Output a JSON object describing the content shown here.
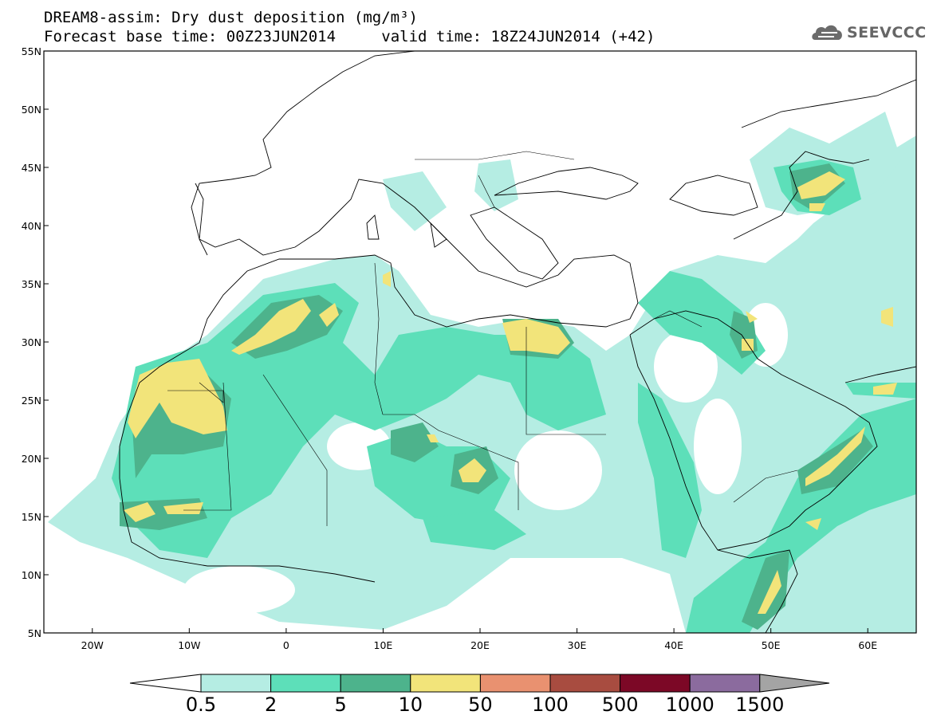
{
  "header": {
    "title_line1": "DREAM8-assim: Dry dust deposition (mg/m³)",
    "title_line2_left": "Forecast base time: 00Z23JUN2014",
    "title_line2_right": "valid time: 18Z24JUN2014 (+42)",
    "logo_text": "SEEVCCC",
    "logo_icon": "cloud-icon"
  },
  "map": {
    "lon_range": [
      -25,
      65
    ],
    "lat_range": [
      5,
      55
    ],
    "y_ticks": [
      "55N",
      "50N",
      "45N",
      "40N",
      "35N",
      "30N",
      "25N",
      "20N",
      "15N",
      "10N",
      "5N"
    ],
    "x_ticks": [
      "20W",
      "10W",
      "0",
      "10E",
      "20E",
      "30E",
      "40E",
      "50E",
      "60E"
    ]
  },
  "legend": {
    "labels": [
      "0.5",
      "2",
      "5",
      "10",
      "50",
      "100",
      "500",
      "1000",
      "1500"
    ],
    "colors": [
      "#ffffff",
      "#b5ede3",
      "#5ddfb9",
      "#4db38c",
      "#f2e47a",
      "#e99170",
      "#a84c40",
      "#7c0826",
      "#8b6b9e",
      "#a4a4a4"
    ]
  }
}
